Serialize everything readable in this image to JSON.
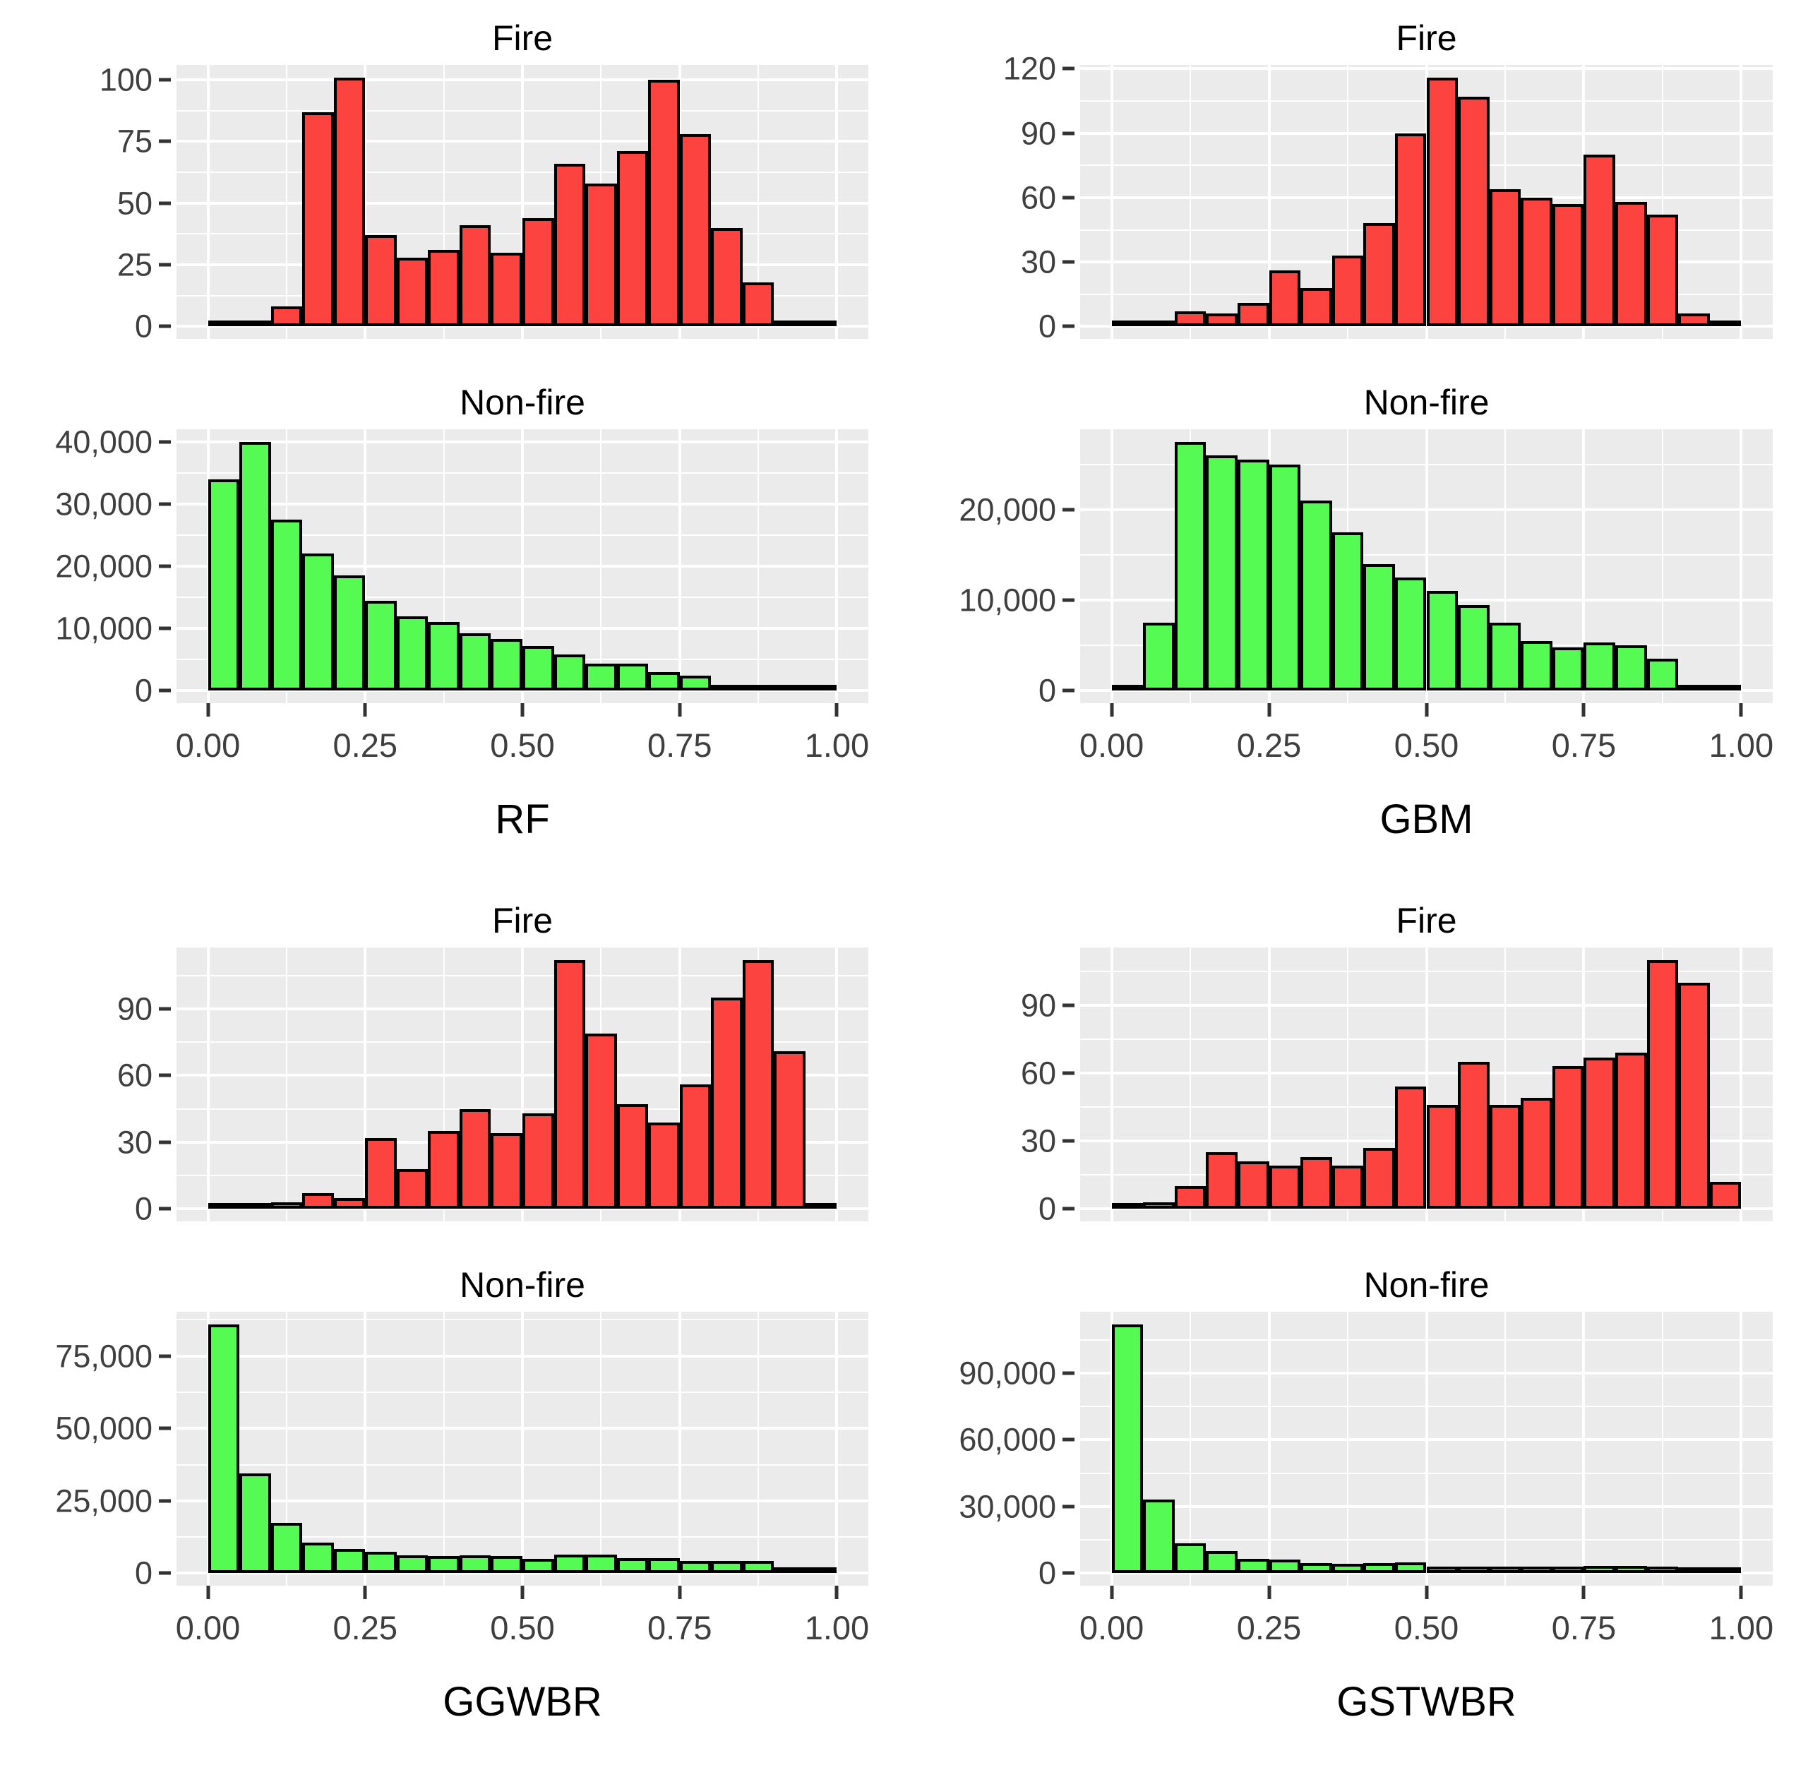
{
  "colors": {
    "fire_fill": "#FC4340",
    "nonfire_fill": "#55FA52",
    "bar_stroke": "#000000",
    "panel_background": "#EBEBEB",
    "gridline": "#FFFFFF",
    "tick_text": "#3F3F3F",
    "title_text": "#000000"
  },
  "chart_data": [
    {
      "type": "histogram",
      "xlabel": "RF",
      "x_range": [
        0,
        1
      ],
      "x_bin_width": 0.05,
      "xticks": [
        "0.00",
        "0.25",
        "0.50",
        "0.75",
        "1.00"
      ],
      "fire": {
        "title": "Fire",
        "color": "#FC4340",
        "yticks": [
          0,
          25,
          50,
          75,
          100
        ],
        "values": [
          1,
          1,
          8,
          87,
          101,
          37,
          28,
          31,
          41,
          30,
          44,
          66,
          58,
          71,
          100,
          78,
          40,
          18,
          2,
          1
        ]
      },
      "nonfire": {
        "title": "Non-fire",
        "color": "#55FA52",
        "yticks": [
          0,
          10000,
          20000,
          30000,
          40000
        ],
        "values": [
          34000,
          40000,
          27500,
          22000,
          18500,
          14500,
          12000,
          11000,
          9200,
          8300,
          7200,
          5800,
          4400,
          4400,
          3000,
          2400,
          1000,
          700,
          250,
          100
        ]
      }
    },
    {
      "type": "histogram",
      "xlabel": "GBM",
      "x_range": [
        0,
        1
      ],
      "x_bin_width": 0.05,
      "xticks": [
        "0.00",
        "0.25",
        "0.50",
        "0.75",
        "1.00"
      ],
      "fire": {
        "title": "Fire",
        "color": "#FC4340",
        "yticks": [
          0,
          30,
          60,
          90,
          120
        ],
        "values": [
          1,
          2,
          7,
          6,
          11,
          26,
          18,
          33,
          48,
          90,
          116,
          107,
          64,
          60,
          57,
          80,
          58,
          52,
          6,
          0
        ]
      },
      "nonfire": {
        "title": "Non-fire",
        "color": "#55FA52",
        "yticks": [
          0,
          10000,
          20000
        ],
        "values": [
          150,
          7500,
          27500,
          26000,
          25500,
          25000,
          21000,
          17500,
          14000,
          12500,
          11000,
          9500,
          7500,
          5500,
          4800,
          5300,
          5000,
          3500,
          600,
          150
        ]
      }
    },
    {
      "type": "histogram",
      "xlabel": "GGWBR",
      "x_range": [
        0,
        1
      ],
      "x_bin_width": 0.05,
      "xticks": [
        "0.00",
        "0.25",
        "0.50",
        "0.75",
        "1.00"
      ],
      "fire": {
        "title": "Fire",
        "color": "#FC4340",
        "yticks": [
          0,
          30,
          60,
          90
        ],
        "values": [
          1,
          1,
          3,
          7,
          5,
          32,
          18,
          35,
          45,
          34,
          43,
          112,
          79,
          47,
          39,
          56,
          95,
          112,
          71,
          1
        ]
      },
      "nonfire": {
        "title": "Non-fire",
        "color": "#55FA52",
        "yticks": [
          0,
          25000,
          50000,
          75000
        ],
        "values": [
          86000,
          34500,
          17500,
          10500,
          8500,
          7500,
          6200,
          6000,
          6200,
          6000,
          5000,
          6500,
          6500,
          5200,
          5200,
          4200,
          4200,
          4300,
          1600,
          1300
        ]
      }
    },
    {
      "type": "histogram",
      "xlabel": "GSTWBR",
      "x_range": [
        0,
        1
      ],
      "x_bin_width": 0.05,
      "xticks": [
        "0.00",
        "0.25",
        "0.50",
        "0.75",
        "1.00"
      ],
      "fire": {
        "title": "Fire",
        "color": "#FC4340",
        "yticks": [
          0,
          30,
          60,
          90
        ],
        "values": [
          2,
          3,
          10,
          25,
          21,
          19,
          23,
          19,
          27,
          54,
          46,
          65,
          46,
          49,
          63,
          67,
          69,
          110,
          100,
          12
        ]
      },
      "nonfire": {
        "title": "Non-fire",
        "color": "#55FA52",
        "yticks": [
          0,
          30000,
          60000,
          90000
        ],
        "values": [
          112000,
          33000,
          13500,
          10000,
          6500,
          6000,
          4500,
          4200,
          4500,
          4800,
          3000,
          3000,
          3000,
          3000,
          3000,
          3200,
          3200,
          3000,
          1500,
          600
        ]
      }
    }
  ]
}
